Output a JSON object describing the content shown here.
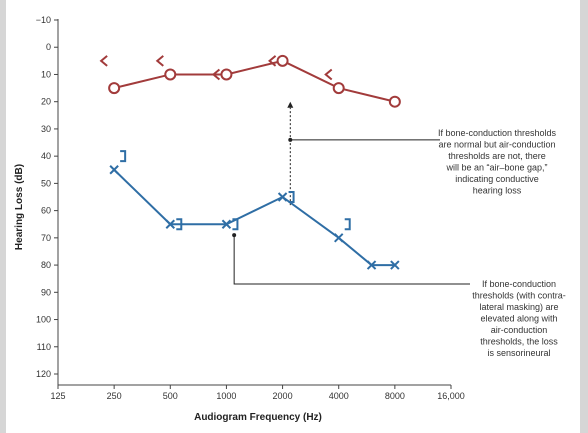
{
  "chart_data": {
    "type": "line",
    "xlabel": "Audiogram Frequency (Hz)",
    "ylabel": "Hearing Loss (dB)",
    "x_scale": "log2",
    "xlim": [
      125,
      16000
    ],
    "ylim": [
      -10,
      120
    ],
    "y_inverted": true,
    "grid": false,
    "x_ticks": [
      {
        "value": 125,
        "label": "125"
      },
      {
        "value": 250,
        "label": "250"
      },
      {
        "value": 500,
        "label": "500"
      },
      {
        "value": 1000,
        "label": "1000"
      },
      {
        "value": 2000,
        "label": "2000"
      },
      {
        "value": 4000,
        "label": "4000"
      },
      {
        "value": 8000,
        "label": "8000"
      },
      {
        "value": 16000,
        "label": "16,000"
      }
    ],
    "y_ticks": [
      -10,
      0,
      10,
      20,
      30,
      40,
      50,
      60,
      70,
      80,
      90,
      100,
      110,
      120
    ],
    "series": [
      {
        "role": "air-conduction-right",
        "color": "#a23b3b",
        "marker": "circle",
        "connected": true,
        "points": [
          {
            "x": 250,
            "y": 15
          },
          {
            "x": 500,
            "y": 10
          },
          {
            "x": 1000,
            "y": 10
          },
          {
            "x": 2000,
            "y": 5
          },
          {
            "x": 4000,
            "y": 15
          },
          {
            "x": 8000,
            "y": 20
          }
        ]
      },
      {
        "role": "bone-conduction-right",
        "color": "#a23b3b",
        "marker": "chevron-left",
        "connected": false,
        "points": [
          {
            "x": 250,
            "y": 5
          },
          {
            "x": 500,
            "y": 5
          },
          {
            "x": 1000,
            "y": 10
          },
          {
            "x": 2000,
            "y": 5
          },
          {
            "x": 4000,
            "y": 10
          }
        ]
      },
      {
        "role": "air-conduction-left",
        "color": "#2f6ea5",
        "marker": "x",
        "connected": true,
        "points": [
          {
            "x": 250,
            "y": 45
          },
          {
            "x": 500,
            "y": 65
          },
          {
            "x": 1000,
            "y": 65
          },
          {
            "x": 2000,
            "y": 55
          },
          {
            "x": 4000,
            "y": 70
          },
          {
            "x": 6000,
            "y": 80
          },
          {
            "x": 8000,
            "y": 80
          }
        ]
      },
      {
        "role": "bone-conduction-left",
        "color": "#2f6ea5",
        "marker": "bracket-right",
        "connected": false,
        "points": [
          {
            "x": 250,
            "y": 40
          },
          {
            "x": 500,
            "y": 65
          },
          {
            "x": 1000,
            "y": 65
          },
          {
            "x": 2000,
            "y": 55
          },
          {
            "x": 4000,
            "y": 65
          }
        ]
      }
    ],
    "annotations": [
      {
        "lines": [
          "If bone-conduction thresholds",
          "are normal but air-conduction",
          "thresholds are not, there",
          "will be an “air–bone gap,”",
          "indicating conductive",
          "hearing loss"
        ],
        "target": {
          "x": 2200,
          "y": 34
        },
        "gap_arrow": {
          "x": 2200,
          "from_y": 58,
          "to_y": 20
        }
      },
      {
        "lines": [
          "If bone-conduction",
          "thresholds (with contra-",
          "lateral masking) are",
          "elevated along with",
          "air-conduction",
          "thresholds, the loss",
          "is sensorineural"
        ],
        "target": {
          "x": 1100,
          "y": 69
        }
      }
    ]
  }
}
